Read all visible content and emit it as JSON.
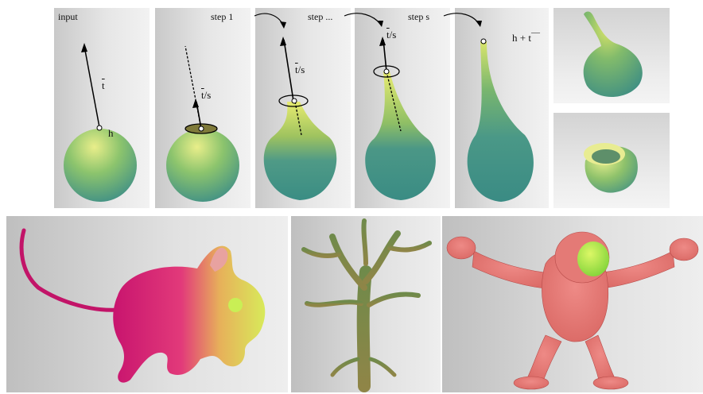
{
  "figure": {
    "labels": {
      "input": "input",
      "step_1": "step 1",
      "step_dots": "step ...",
      "step_s": "step s"
    },
    "math": {
      "t": "t",
      "h": "h",
      "t_over": "t",
      "slash_s": "/s",
      "h_plus": "h + t"
    }
  }
}
